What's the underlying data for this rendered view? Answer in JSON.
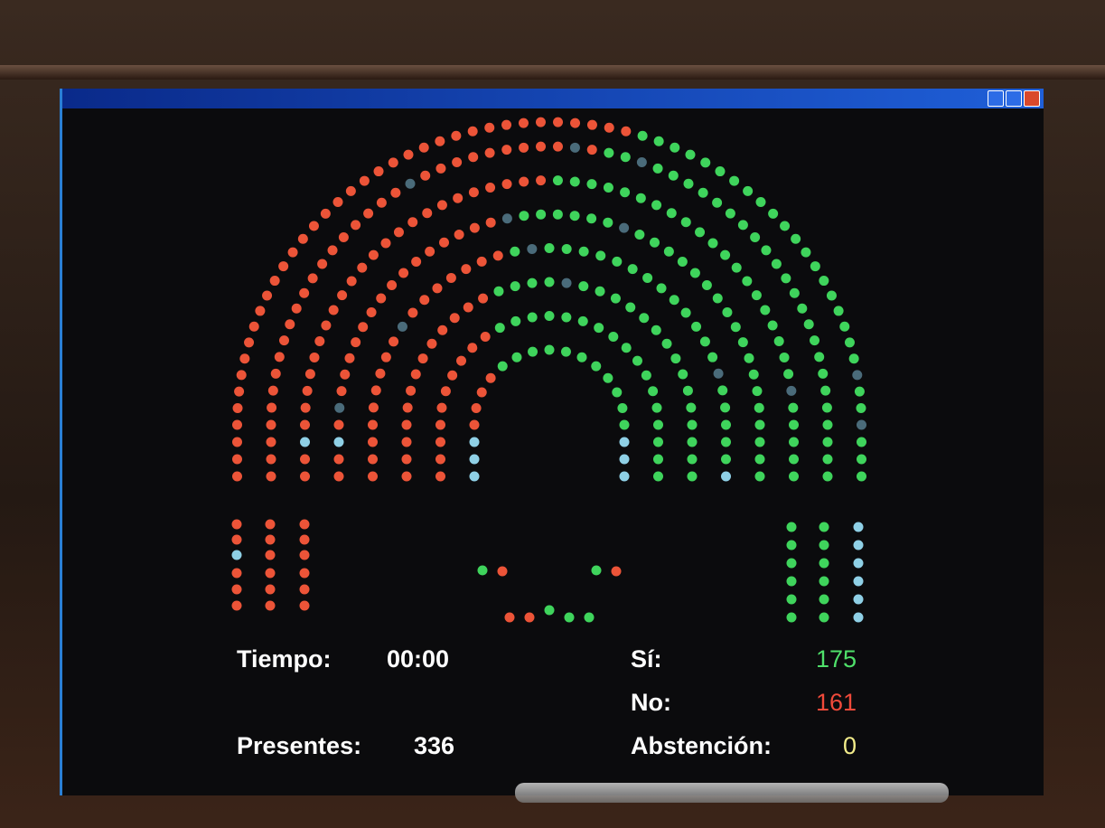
{
  "timer": {
    "label": "Tiempo:",
    "value": "00:00"
  },
  "present": {
    "label": "Presentes:",
    "value": 336
  },
  "votes": [
    {
      "label": "Sí:",
      "value": 175
    },
    {
      "label": "No:",
      "value": 161
    },
    {
      "label": "Abstención:",
      "value": 0
    }
  ]
}
